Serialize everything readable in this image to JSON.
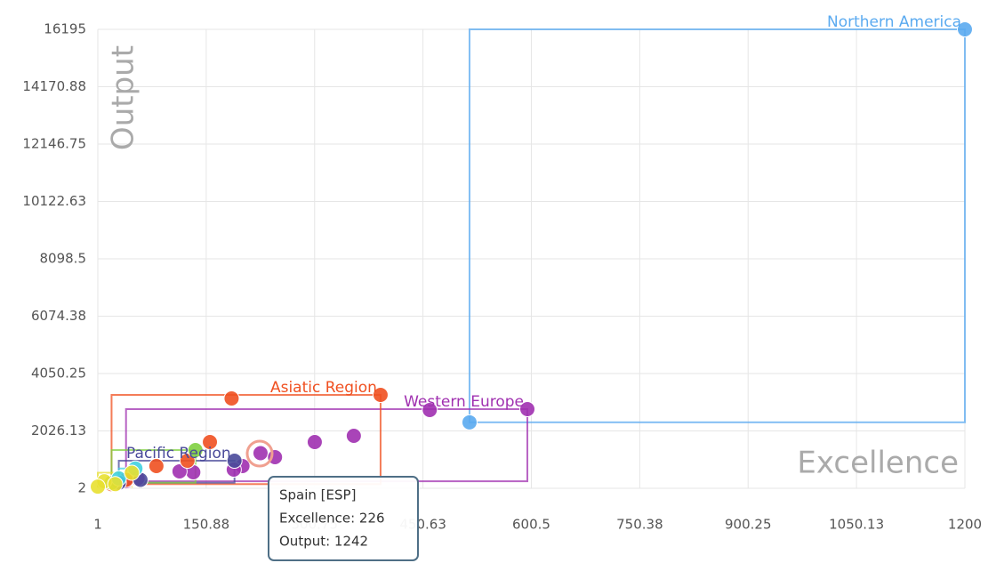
{
  "chart_data": {
    "type": "scatter",
    "x_label": "Excellence",
    "y_label": "Output",
    "xlim": [
      1,
      1200
    ],
    "xticks": [
      1,
      150.88,
      300.75,
      450.63,
      600.5,
      750.38,
      900.25,
      1050.13,
      1200
    ],
    "ylim": [
      2,
      16195
    ],
    "yticks": [
      2,
      2026.13,
      4050.25,
      6074.38,
      8098.5,
      10122.63,
      12146.75,
      14170.88,
      16195
    ],
    "grid": true,
    "series": [
      {
        "name": "Northern America",
        "color": "#5aaaf0",
        "x": [
          515,
          1200
        ],
        "y": [
          2330,
          16195
        ]
      },
      {
        "name": "Western Europe",
        "color": "#a030b0",
        "x": [
          595,
          460,
          355,
          301,
          226,
          246,
          201,
          189,
          133,
          114,
          56,
          40
        ],
        "y": [
          2795,
          2763,
          1853,
          1634,
          1242,
          1100,
          786,
          661,
          567,
          600,
          347,
          250
        ]
      },
      {
        "name": "Asiatic Region",
        "color": "#f05020",
        "x": [
          392,
          186,
          156,
          125,
          82,
          40,
          20
        ],
        "y": [
          3297,
          3171,
          1634,
          975,
          786,
          300,
          150
        ]
      },
      {
        "name": "Pacific Region",
        "color": "#4a4a9a",
        "x": [
          190,
          60,
          30
        ],
        "y": [
          975,
          300,
          200
        ]
      },
      {
        "color": "#80d040",
        "x": [
          136,
          20
        ],
        "y": [
          1351,
          200
        ]
      },
      {
        "color": "#40d0e0",
        "x": [
          53,
          30
        ],
        "y": [
          700,
          350
        ]
      },
      {
        "color": "#e8e030",
        "x": [
          48,
          10,
          1,
          25
        ],
        "y": [
          550,
          250,
          60,
          150
        ]
      }
    ],
    "tooltip": {
      "title": "Spain [ESP]",
      "lines": [
        "Excellence: 226",
        "Output: 1242"
      ]
    }
  }
}
